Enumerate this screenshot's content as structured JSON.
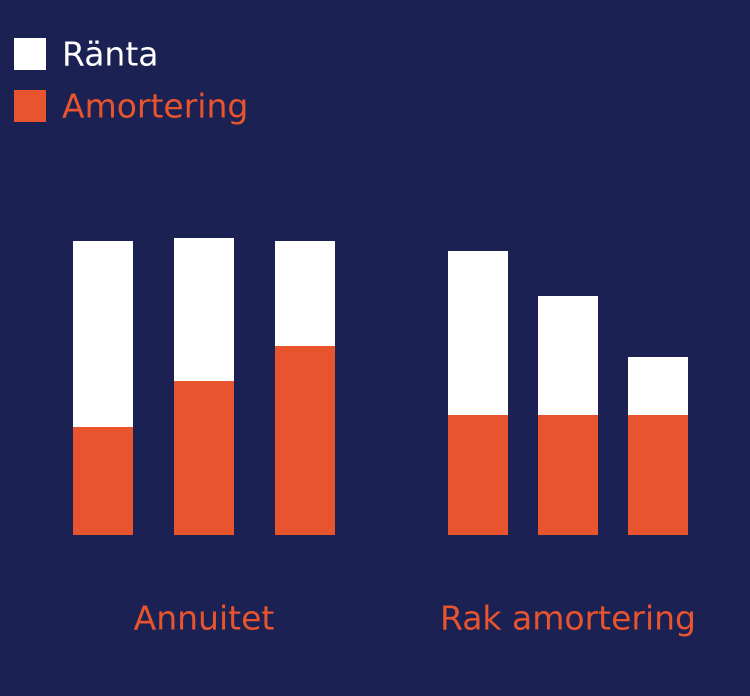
{
  "chart_data": {
    "type": "bar",
    "stacked": true,
    "categories": [
      null,
      null,
      null,
      null,
      null,
      null
    ],
    "groups": [
      {
        "label": "Annuitet",
        "count": 3
      },
      {
        "label": "Rak amortering",
        "count": 3
      }
    ],
    "series": [
      {
        "name": "Ränta",
        "color": "#ffffff",
        "values": [
          186,
          143,
          105,
          164,
          119,
          58
        ]
      },
      {
        "name": "Amortering",
        "color": "#e8542e",
        "values": [
          108,
          154,
          189,
          120,
          120,
          120
        ]
      }
    ],
    "ylim": [
      0,
      300
    ]
  }
}
